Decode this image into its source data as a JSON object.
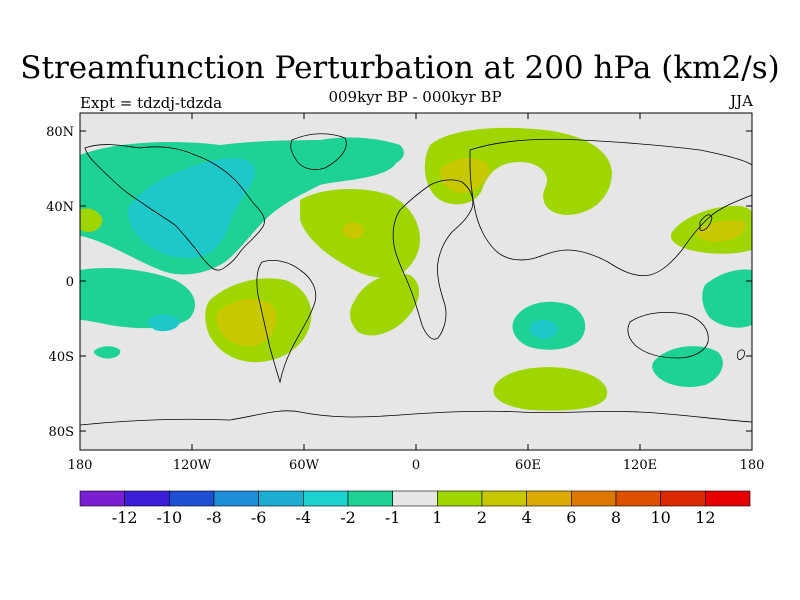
{
  "title": "Streamfunction Perturbation at 200 hPa (km2/s)",
  "experiment": "Expt = tdzdj-tdzda",
  "subtitle": "009kyr BP - 000kyr BP",
  "season": "JJA",
  "lat_ticks": [
    "80N",
    "40N",
    "0",
    "40S",
    "80S"
  ],
  "lon_ticks": [
    "180",
    "120W",
    "60W",
    "0",
    "60E",
    "120E",
    "180"
  ],
  "colorbar": {
    "labels": [
      "-12",
      "-10",
      "-8",
      "-6",
      "-4",
      "-2",
      "-1",
      "1",
      "2",
      "4",
      "6",
      "8",
      "10",
      "12"
    ],
    "colors": [
      "#7a1ed2",
      "#3a1ed8",
      "#1e4ed2",
      "#1e8ed8",
      "#1eaed2",
      "#1ed2d2",
      "#1ed296",
      "#e6e6e6",
      "#a0d600",
      "#c8c800",
      "#dcaa00",
      "#dc7800",
      "#dc5000",
      "#dc2800",
      "#e60000"
    ]
  },
  "map_colors": {
    "background": "#e6e6e6",
    "neg_1_2": "#1ed296",
    "neg_2_4": "#1ec8c8",
    "pos_1_2": "#a0d600",
    "pos_2_4": "#c8c800",
    "coast": "#000000"
  }
}
